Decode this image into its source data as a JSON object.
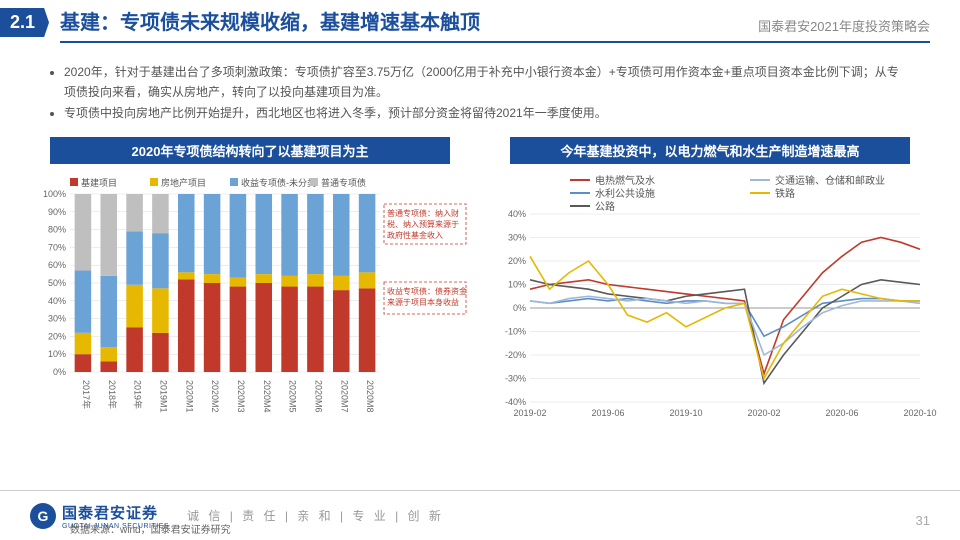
{
  "header": {
    "section": "2.1",
    "title": "基建：专项债未来规模收缩，基建增速基本触顶",
    "subtitle": "国泰君安2021年度投资策略会"
  },
  "bullets": [
    "2020年，针对于基建出台了多项刺激政策：专项债扩容至3.75万亿（2000亿用于补充中小银行资本金）+专项债可用作资本金+重点项目资本金比例下调；从专项债投向来看，确实从房地产，转向了以投向基建项目为准。",
    "专项债中投向房地产比例开始提升，西北地区也将进入冬季，预计部分资金将留待2021年一季度使用。"
  ],
  "chart1": {
    "title": "2020年专项债结构转向了以基建项目为主",
    "type": "stacked-bar",
    "legend": [
      "基建项目",
      "房地产项目",
      "收益专项债-未分类",
      "普通专项债"
    ],
    "legend_colors": [
      "#c0392b",
      "#e6b800",
      "#6ba3d6",
      "#bfbfbf"
    ],
    "categories": [
      "2017年",
      "2018年",
      "2019年",
      "2019M1",
      "2020M1",
      "2020M2",
      "2020M3",
      "2020M4",
      "2020M5",
      "2020M6",
      "2020M7",
      "2020M8"
    ],
    "series": {
      "infra": [
        10,
        6,
        25,
        22,
        52,
        50,
        48,
        50,
        48,
        48,
        46,
        47
      ],
      "realest": [
        12,
        8,
        24,
        25,
        4,
        5,
        5,
        5,
        6,
        7,
        8,
        9
      ],
      "income": [
        35,
        40,
        30,
        31,
        44,
        45,
        47,
        45,
        46,
        45,
        46,
        44
      ],
      "normal": [
        43,
        46,
        21,
        22,
        0,
        0,
        0,
        0,
        0,
        0,
        0,
        0
      ]
    },
    "ylim": [
      0,
      100
    ],
    "ytick_step": 10,
    "annotations": [
      "普通专项债：纳入财税、纳入预算来源于政府性基金收入",
      "收益专项债：债券资金来源于项目本身收益"
    ],
    "grid_color": "#d9d9d9",
    "label_fontsize": 9
  },
  "chart2": {
    "title": "今年基建投资中，以电力燃气和水生产制造增速最高",
    "type": "line",
    "legend": [
      {
        "label": "电热燃气及水",
        "color": "#c0392b"
      },
      {
        "label": "水利公共设施",
        "color": "#5a8fc7"
      },
      {
        "label": "公路",
        "color": "#595959"
      },
      {
        "label": "交通运输、仓储和邮政业",
        "color": "#9fb8d9"
      },
      {
        "label": "铁路",
        "color": "#e6b800"
      }
    ],
    "x_labels": [
      "2019-02",
      "2019-06",
      "2019-10",
      "2020-02",
      "2020-06",
      "2020-10"
    ],
    "ylim": [
      -40,
      40
    ],
    "ytick_step": 10,
    "grid_color": "#d9d9d9",
    "series": {
      "elec": [
        8,
        10,
        11,
        12,
        10,
        9,
        8,
        7,
        6,
        5,
        4,
        3,
        -28,
        -5,
        5,
        15,
        22,
        28,
        30,
        28,
        25
      ],
      "water": [
        3,
        2,
        3,
        4,
        3,
        4,
        3,
        2,
        3,
        3,
        2,
        2,
        -12,
        -8,
        -3,
        2,
        3,
        4,
        4,
        3,
        3
      ],
      "road": [
        12,
        10,
        9,
        8,
        6,
        5,
        4,
        3,
        5,
        6,
        7,
        8,
        -32,
        -20,
        -10,
        0,
        5,
        10,
        12,
        11,
        10
      ],
      "trans": [
        3,
        2,
        4,
        5,
        4,
        3,
        4,
        3,
        2,
        3,
        2,
        2,
        -20,
        -15,
        -8,
        -2,
        1,
        3,
        3,
        3,
        2
      ],
      "rail": [
        22,
        8,
        15,
        20,
        10,
        -3,
        -6,
        -2,
        -8,
        -4,
        0,
        2,
        -30,
        -15,
        -5,
        5,
        8,
        6,
        4,
        3,
        3
      ]
    },
    "line_width": 1.6,
    "label_fontsize": 9
  },
  "footer": {
    "company": "国泰君安证券",
    "company_en": "GUOTAI JUNAN SECURITIES",
    "motto": "诚 信 | 责 任 | 亲 和 | 专 业 | 创 新",
    "source": "数据来源：wind，国泰君安证券研究",
    "page": "31"
  }
}
